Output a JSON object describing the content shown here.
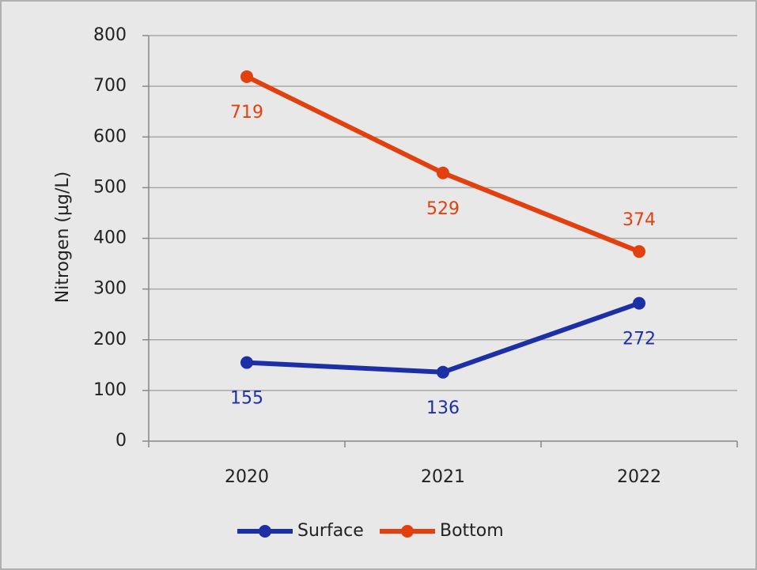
{
  "chart_data": {
    "type": "line",
    "y_label": "Nitrogen (µg/L)",
    "categories": [
      "2020",
      "2021",
      "2022"
    ],
    "series": [
      {
        "name": "Surface",
        "color": "#1c2fa6",
        "values": [
          155,
          136,
          272
        ]
      },
      {
        "name": "Bottom",
        "color": "#e2400f",
        "values": [
          719,
          529,
          374
        ]
      }
    ],
    "ylim": [
      0,
      800
    ],
    "yticks": [
      0,
      100,
      200,
      300,
      400,
      500,
      600,
      700,
      800
    ],
    "grid": true,
    "legend": "bottom"
  }
}
